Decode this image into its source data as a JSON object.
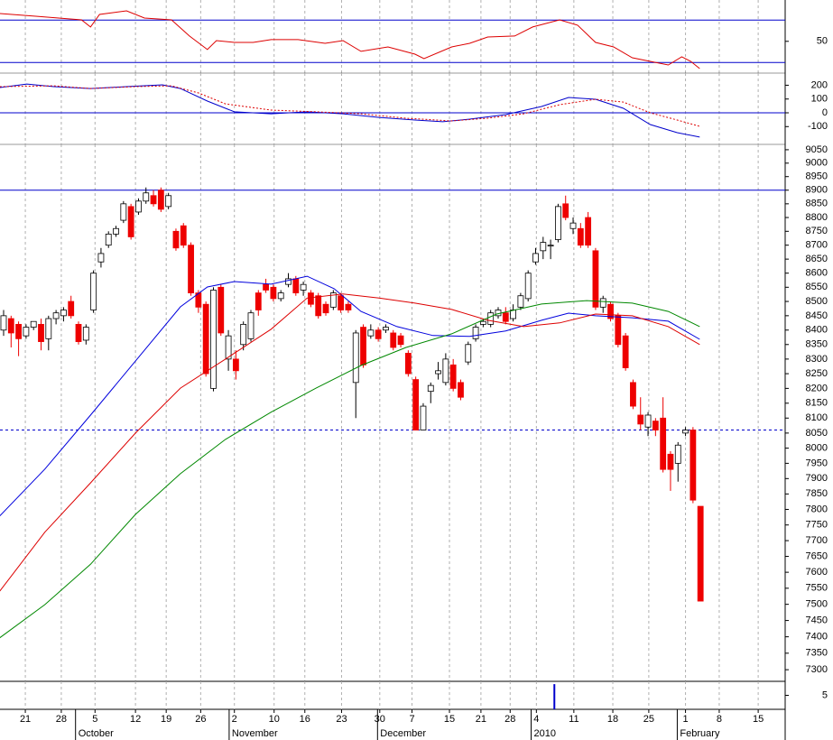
{
  "x_axis": {
    "xlim": [
      -0.48,
      104.3
    ],
    "grid": true,
    "xticks": [
      {
        "value": 2.9,
        "label": "21"
      },
      {
        "value": 7.7,
        "label": "28"
      },
      {
        "value": 12.2,
        "label": "5"
      },
      {
        "value": 17.6,
        "label": "12"
      },
      {
        "value": 21.7,
        "label": "19"
      },
      {
        "value": 26.3,
        "label": "26"
      },
      {
        "value": 30.8,
        "label": "2"
      },
      {
        "value": 36.1,
        "label": "10"
      },
      {
        "value": 40.2,
        "label": "16"
      },
      {
        "value": 45.1,
        "label": "23"
      },
      {
        "value": 50.2,
        "label": "30"
      },
      {
        "value": 54.5,
        "label": "7"
      },
      {
        "value": 59.5,
        "label": "15"
      },
      {
        "value": 63.7,
        "label": "21"
      },
      {
        "value": 67.6,
        "label": "28"
      },
      {
        "value": 71.1,
        "label": "4"
      },
      {
        "value": 76.1,
        "label": "11"
      },
      {
        "value": 81.3,
        "label": "18"
      },
      {
        "value": 86.1,
        "label": "25"
      },
      {
        "value": 91,
        "label": "1"
      },
      {
        "value": 95.5,
        "label": "8"
      },
      {
        "value": 100.7,
        "label": "15"
      }
    ],
    "months": [
      {
        "value": 9.6,
        "label": "October"
      },
      {
        "value": 30.1,
        "label": "November"
      },
      {
        "value": 49.9,
        "label": "December"
      },
      {
        "value": 70.4,
        "label": "2010"
      },
      {
        "value": 89.9,
        "label": "February"
      }
    ]
  },
  "chart_data": [
    {
      "type": "line",
      "ylim": [
        20,
        89
      ],
      "yticks": [
        50
      ],
      "levels": [
        70,
        30
      ],
      "level_color": "#0000cc",
      "series": [
        {
          "color": "#dd0000",
          "style": "solid",
          "x": [
            -0.5,
            4.3,
            10.4,
            11.6,
            12.8,
            16.4,
            18.8,
            22.4,
            24.8,
            27.2,
            28.4,
            30.8,
            33.3,
            35.7,
            39.3,
            42.9,
            45.3,
            47.7,
            51.3,
            54.9,
            56.1,
            59.8,
            62.2,
            64.6,
            68.2,
            70.6,
            74.2,
            76.6,
            79,
            81.4,
            83.9,
            86.3,
            88.7,
            90.5,
            91.7,
            92.9
          ],
          "values": [
            76.2,
            73.7,
            70.3,
            63.5,
            75.4,
            78.8,
            72,
            70.3,
            55,
            42.2,
            50.7,
            49,
            49,
            51.6,
            51.6,
            48.1,
            50.7,
            40.5,
            44.7,
            37.9,
            33.7,
            44.7,
            48.1,
            54.1,
            55,
            63.5,
            70.3,
            65.2,
            49,
            44.7,
            34.5,
            31.1,
            27.7,
            35.4,
            31.1,
            24.3
          ]
        }
      ]
    },
    {
      "type": "line",
      "ylim": [
        -229,
        288
      ],
      "yticks": [
        200,
        100,
        0,
        -100
      ],
      "levels": [
        0
      ],
      "level_color": "#0000cc",
      "series": [
        {
          "color": "#0000cc",
          "style": "solid",
          "x": [
            -0.5,
            3.1,
            6.7,
            11.6,
            16.4,
            21.2,
            23.6,
            27.2,
            30.8,
            35.7,
            40.5,
            45.3,
            50.1,
            54.9,
            58.6,
            62.2,
            67,
            71.8,
            75.4,
            79,
            82.7,
            86.3,
            89.9,
            92.9
          ],
          "values": [
            183,
            209,
            190,
            176,
            190,
            203,
            176,
            85,
            7,
            -7,
            7,
            -7,
            -33,
            -52,
            -65,
            -46,
            -13,
            46,
            111,
            98,
            33,
            -85,
            -144,
            -176
          ]
        },
        {
          "color": "#dd0000",
          "style": "dotted",
          "x": [
            -0.5,
            6.7,
            11.6,
            17.6,
            22.4,
            26,
            29.6,
            35.7,
            41.7,
            47.7,
            53.7,
            59.8,
            64.6,
            69.4,
            74.2,
            79,
            82.7,
            86.3,
            89.9,
            92.9
          ],
          "values": [
            190,
            196,
            176,
            190,
            196,
            144,
            65,
            20,
            7,
            -7,
            -39,
            -59,
            -39,
            -7,
            59,
            98,
            78,
            0,
            -52,
            -98
          ]
        }
      ]
    },
    {
      "type": "candlestick",
      "log_scale": true,
      "ylim": [
        7265,
        9070
      ],
      "yticks": [
        9050,
        9000,
        8950,
        8900,
        8850,
        8800,
        8750,
        8700,
        8650,
        8600,
        8550,
        8500,
        8450,
        8400,
        8350,
        8300,
        8250,
        8200,
        8150,
        8100,
        8050,
        8000,
        7950,
        7900,
        7850,
        7800,
        7750,
        7700,
        7650,
        7600,
        7550,
        7500,
        7450,
        7400,
        7350,
        7300
      ],
      "levels": [
        8900,
        8060
      ],
      "level_styles": [
        "solid",
        "dashed"
      ],
      "level_color": "#0000cc",
      "up_color": "#ffffff",
      "down_color": "#ee0000",
      "open": [
        8400,
        8440,
        8420,
        8380,
        8410,
        8420,
        8370,
        8440,
        8450,
        8500,
        8420,
        8365,
        8470,
        8640,
        8700,
        8740,
        8790,
        8840,
        8820,
        8860,
        8880,
        8900,
        8840,
        8750,
        8770,
        8700,
        8530,
        8490,
        8200,
        8550,
        8300,
        8300,
        8350,
        8370,
        8530,
        8560,
        8550,
        8510,
        8560,
        8580,
        8540,
        8530,
        8520,
        8490,
        8480,
        8520,
        8490,
        8220,
        8410,
        8380,
        8400,
        8400,
        8390,
        8380,
        8320,
        8230,
        8060,
        8190,
        8250,
        8220,
        8280,
        8220,
        8290,
        8370,
        8420,
        8420,
        8450,
        8460,
        8440,
        8480,
        8510,
        8640,
        8680,
        8700,
        8720,
        8850,
        8760,
        8760,
        8800,
        8680,
        8480,
        8490,
        8450,
        8380,
        8220,
        8110,
        8070,
        8090,
        8100,
        7980,
        7950,
        8050,
        8060,
        7810
      ],
      "high": [
        8470,
        8450,
        8430,
        8420,
        8430,
        8440,
        8450,
        8470,
        8480,
        8520,
        8430,
        8420,
        8610,
        8690,
        8750,
        8770,
        8860,
        8850,
        8870,
        8910,
        8900,
        8910,
        8890,
        8760,
        8780,
        8710,
        8540,
        8500,
        8550,
        8560,
        8400,
        8330,
        8430,
        8470,
        8540,
        8580,
        8560,
        8540,
        8600,
        8590,
        8570,
        8540,
        8530,
        8500,
        8540,
        8530,
        8500,
        8400,
        8420,
        8420,
        8410,
        8420,
        8400,
        8390,
        8330,
        8240,
        8150,
        8220,
        8290,
        8320,
        8300,
        8230,
        8360,
        8420,
        8440,
        8470,
        8480,
        8480,
        8490,
        8530,
        8610,
        8690,
        8730,
        8720,
        8850,
        8880,
        8800,
        8780,
        8820,
        8690,
        8520,
        8500,
        8460,
        8390,
        8230,
        8170,
        8120,
        8100,
        8170,
        7990,
        8020,
        8070,
        8070,
        7810
      ],
      "low": [
        8380,
        8340,
        8310,
        8370,
        8400,
        8330,
        8330,
        8420,
        8430,
        8440,
        8350,
        8350,
        8460,
        8620,
        8690,
        8730,
        8780,
        8720,
        8810,
        8850,
        8840,
        8820,
        8830,
        8680,
        8690,
        8520,
        8460,
        8240,
        8190,
        8380,
        8260,
        8230,
        8330,
        8360,
        8450,
        8530,
        8500,
        8500,
        8550,
        8520,
        8520,
        8480,
        8440,
        8450,
        8470,
        8460,
        8460,
        8100,
        8270,
        8370,
        8360,
        8390,
        8330,
        8340,
        8240,
        8060,
        8060,
        8150,
        8230,
        8210,
        8190,
        8160,
        8280,
        8360,
        8410,
        8410,
        8440,
        8420,
        8430,
        8470,
        8500,
        8630,
        8650,
        8650,
        8710,
        8790,
        8740,
        8690,
        8690,
        8470,
        8460,
        8430,
        8340,
        8260,
        8130,
        8060,
        8040,
        8040,
        7920,
        7860,
        7890,
        8040,
        7820,
        7510
      ],
      "close": [
        8450,
        8390,
        8370,
        8410,
        8430,
        8360,
        8440,
        8460,
        8470,
        8450,
        8360,
        8410,
        8600,
        8670,
        8740,
        8760,
        8850,
        8730,
        8860,
        8890,
        8850,
        8830,
        8880,
        8690,
        8700,
        8530,
        8480,
        8250,
        8540,
        8390,
        8380,
        8260,
        8420,
        8460,
        8470,
        8540,
        8510,
        8530,
        8580,
        8530,
        8560,
        8490,
        8450,
        8460,
        8530,
        8470,
        8470,
        8390,
        8280,
        8400,
        8370,
        8410,
        8340,
        8350,
        8250,
        8060,
        8140,
        8210,
        8260,
        8300,
        8200,
        8170,
        8350,
        8410,
        8430,
        8460,
        8470,
        8430,
        8470,
        8520,
        8600,
        8670,
        8710,
        8700,
        8840,
        8800,
        8780,
        8700,
        8700,
        8480,
        8510,
        8440,
        8350,
        8270,
        8140,
        8080,
        8110,
        8060,
        7930,
        7930,
        8010,
        8060,
        7830,
        7510
      ],
      "series": [
        {
          "color": "#0000dd",
          "style": "solid",
          "x": [
            -0.5,
            5.5,
            11.6,
            17.6,
            23.6,
            27.2,
            30.8,
            35.7,
            40.5,
            44.1,
            47.7,
            52.5,
            57.3,
            62.2,
            67,
            71.8,
            75.4,
            79,
            83.9,
            88.7,
            92.9
          ],
          "values": [
            7779,
            7931,
            8110,
            8293,
            8481,
            8551,
            8570,
            8561,
            8589,
            8545,
            8465,
            8412,
            8381,
            8378,
            8397,
            8434,
            8459,
            8450,
            8443,
            8431,
            8368
          ]
        },
        {
          "color": "#dd0000",
          "style": "solid",
          "x": [
            -0.5,
            5.5,
            11.6,
            17.6,
            23.6,
            29.6,
            35.7,
            40.5,
            45.3,
            50.1,
            54.9,
            59.8,
            64.6,
            69.4,
            74.2,
            79,
            83.9,
            88.7,
            92.9
          ],
          "values": [
            7541,
            7727,
            7886,
            8050,
            8201,
            8300,
            8403,
            8512,
            8526,
            8512,
            8494,
            8472,
            8434,
            8412,
            8425,
            8456,
            8450,
            8412,
            8350
          ]
        },
        {
          "color": "#008800",
          "style": "solid",
          "x": [
            -0.5,
            5.5,
            11.6,
            17.6,
            23.6,
            29.6,
            35.7,
            41.7,
            47.7,
            53.7,
            59.8,
            65.8,
            71.8,
            77.8,
            83.9,
            88.7,
            92.9
          ],
          "values": [
            7397,
            7499,
            7625,
            7784,
            7916,
            8029,
            8120,
            8201,
            8278,
            8340,
            8387,
            8456,
            8491,
            8503,
            8494,
            8465,
            8412
          ]
        }
      ]
    },
    {
      "type": "bar",
      "ylim": [
        0,
        10
      ],
      "yticks": [
        5
      ],
      "color": "#0000cc",
      "x": [
        73.5
      ],
      "values": [
        9
      ]
    }
  ]
}
